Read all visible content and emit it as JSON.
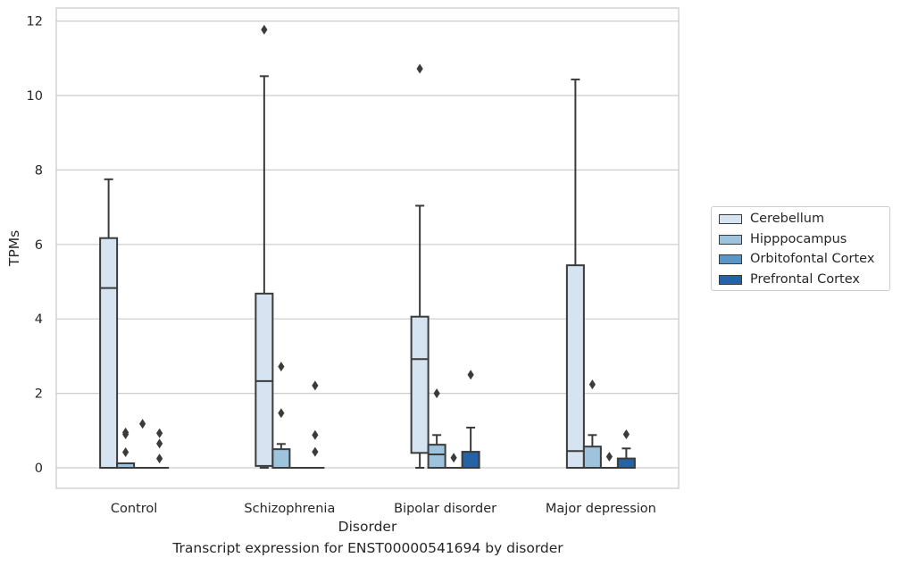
{
  "chart_data": {
    "type": "box",
    "xlabel": "Disorder",
    "ylabel": "TPMs",
    "categories": [
      "Control",
      "Schizophrenia",
      "Bipolar disorder",
      "Major depression"
    ],
    "yticks": [
      "0",
      "2",
      "4",
      "6",
      "8",
      "10",
      "12"
    ],
    "ylim": [
      -0.55,
      12.35
    ],
    "grid": "horizontal",
    "legend_position": "right",
    "series": [
      {
        "name": "Cerebellum",
        "color": "#d6e4f1",
        "boxes": [
          {
            "q1": 0.0,
            "median": 4.83,
            "q3": 6.17,
            "whisker_low": 0.0,
            "whisker_high": 7.75,
            "outliers": []
          },
          {
            "q1": 0.05,
            "median": 2.33,
            "q3": 4.68,
            "whisker_low": 0.0,
            "whisker_high": 10.52,
            "outliers": [
              11.77
            ]
          },
          {
            "q1": 0.4,
            "median": 2.92,
            "q3": 4.06,
            "whisker_low": 0.0,
            "whisker_high": 7.04,
            "outliers": [
              10.72
            ]
          },
          {
            "q1": 0.0,
            "median": 0.45,
            "q3": 5.44,
            "whisker_low": 0.0,
            "whisker_high": 10.43,
            "outliers": []
          }
        ]
      },
      {
        "name": "Hipppocampus",
        "color": "#9dc4dc",
        "boxes": [
          {
            "q1": 0.0,
            "median": 0.0,
            "q3": 0.12,
            "whisker_low": 0.0,
            "whisker_high": 0.12,
            "outliers": [
              0.95,
              0.9,
              0.42
            ]
          },
          {
            "q1": 0.0,
            "median": 0.0,
            "q3": 0.5,
            "whisker_low": 0.0,
            "whisker_high": 0.64,
            "outliers": [
              2.72,
              1.47
            ]
          },
          {
            "q1": 0.0,
            "median": 0.36,
            "q3": 0.62,
            "whisker_low": 0.0,
            "whisker_high": 0.88,
            "outliers": [
              2.0
            ]
          },
          {
            "q1": 0.0,
            "median": 0.0,
            "q3": 0.57,
            "whisker_low": 0.0,
            "whisker_high": 0.88,
            "outliers": [
              2.24
            ]
          }
        ]
      },
      {
        "name": "Orbitofontal Cortex",
        "color": "#5a97c7",
        "boxes": [
          {
            "q1": 0.0,
            "median": 0.0,
            "q3": 0.0,
            "whisker_low": 0.0,
            "whisker_high": 0.0,
            "outliers": [
              1.18
            ]
          },
          {
            "q1": 0.0,
            "median": 0.0,
            "q3": 0.0,
            "whisker_low": 0.0,
            "whisker_high": 0.0,
            "outliers": []
          },
          {
            "q1": 0.0,
            "median": 0.0,
            "q3": 0.0,
            "whisker_low": 0.0,
            "whisker_high": 0.0,
            "outliers": [
              0.27
            ]
          },
          {
            "q1": 0.0,
            "median": 0.0,
            "q3": 0.0,
            "whisker_low": 0.0,
            "whisker_high": 0.0,
            "outliers": [
              0.3
            ]
          }
        ]
      },
      {
        "name": "Prefrontal Cortex",
        "color": "#2663a6",
        "boxes": [
          {
            "q1": 0.0,
            "median": 0.0,
            "q3": 0.0,
            "whisker_low": 0.0,
            "whisker_high": 0.0,
            "outliers": [
              0.93,
              0.65,
              0.25
            ]
          },
          {
            "q1": 0.0,
            "median": 0.0,
            "q3": 0.0,
            "whisker_low": 0.0,
            "whisker_high": 0.0,
            "outliers": [
              2.21,
              0.88,
              0.43
            ]
          },
          {
            "q1": 0.0,
            "median": 0.0,
            "q3": 0.43,
            "whisker_low": 0.0,
            "whisker_high": 1.08,
            "outliers": [
              2.5
            ]
          },
          {
            "q1": 0.0,
            "median": 0.0,
            "q3": 0.25,
            "whisker_low": 0.0,
            "whisker_high": 0.52,
            "outliers": [
              0.9
            ]
          }
        ]
      }
    ]
  },
  "caption": "Transcript expression for ENST00000541694 by disorder"
}
